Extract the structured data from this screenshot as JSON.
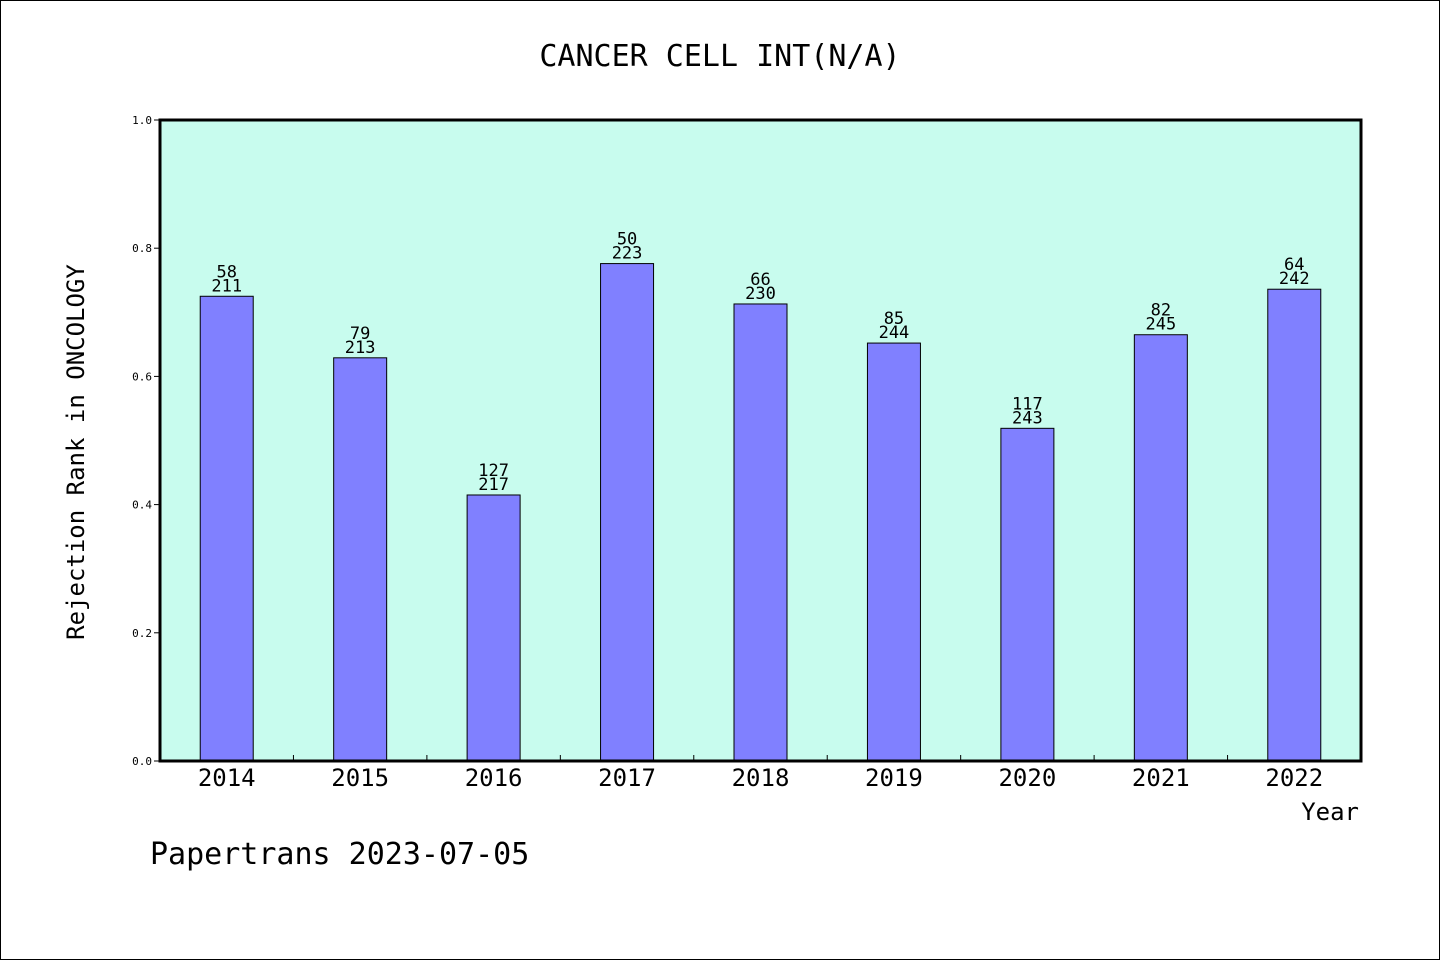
{
  "chart_data": {
    "type": "bar",
    "title": "CANCER CELL INT(N/A)",
    "xlabel": "Year",
    "ylabel": "Rejection Rank in ONCOLOGY",
    "categories": [
      "2014",
      "2015",
      "2016",
      "2017",
      "2018",
      "2019",
      "2020",
      "2021",
      "2022"
    ],
    "values": [
      0.725,
      0.629,
      0.415,
      0.776,
      0.713,
      0.652,
      0.519,
      0.665,
      0.736
    ],
    "rank": [
      "58",
      "79",
      "127",
      "50",
      "66",
      "85",
      "117",
      "82",
      "64"
    ],
    "total": [
      "211",
      "213",
      "217",
      "223",
      "230",
      "244",
      "243",
      "245",
      "242"
    ],
    "ylim": [
      0,
      1.0
    ],
    "yticks": [
      "0.0",
      "0.2",
      "0.4",
      "0.6",
      "0.8",
      "1.0"
    ],
    "grid": false,
    "colors": {
      "plot_background": "#c8fcee",
      "bar_fill": "#8080ff",
      "bar_stroke": "#000000"
    }
  },
  "footer": {
    "watermark": "Papertrans 2023-07-05"
  }
}
